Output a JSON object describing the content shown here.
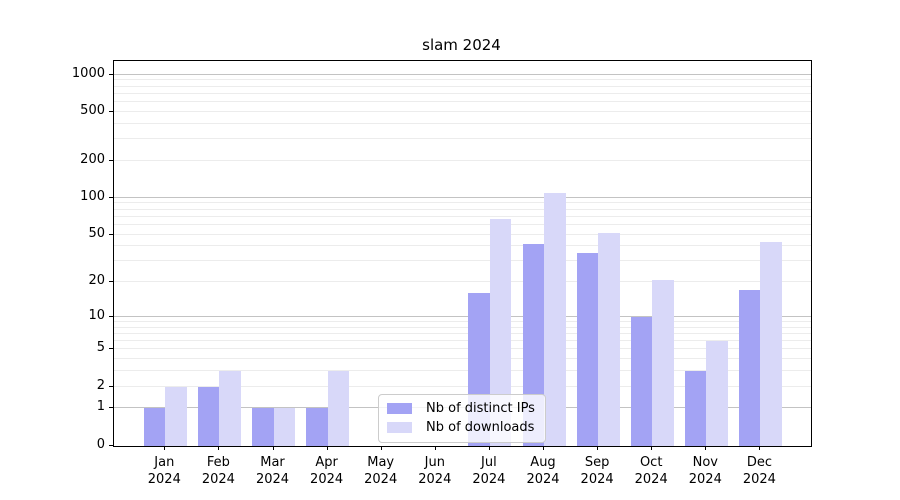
{
  "title": "slam 2024",
  "legend": {
    "items": [
      {
        "label": "Nb of distinct IPs",
        "color": "#a3a3f4"
      },
      {
        "label": "Nb of downloads",
        "color": "#d8d8f9"
      }
    ]
  },
  "axes": {
    "ytick_labels": [
      "0",
      "1",
      "2",
      "5",
      "10",
      "20",
      "50",
      "100",
      "200",
      "500",
      "1000"
    ],
    "year_label": "2024"
  },
  "chart_data": {
    "type": "bar",
    "title": "slam 2024",
    "categories": [
      "Jan 2024",
      "Feb 2024",
      "Mar 2024",
      "Apr 2024",
      "May 2024",
      "Jun 2024",
      "Jul 2024",
      "Aug 2024",
      "Sep 2024",
      "Oct 2024",
      "Nov 2024",
      "Dec 2024"
    ],
    "series": [
      {
        "name": "Nb of distinct IPs",
        "color": "#a3a3f4",
        "values": [
          1,
          2,
          1,
          1,
          0,
          0,
          16,
          42,
          35,
          10,
          3,
          17
        ]
      },
      {
        "name": "Nb of downloads",
        "color": "#d8d8f9",
        "values": [
          2,
          3,
          1,
          3,
          0,
          0,
          67,
          109,
          51,
          21,
          6,
          43
        ]
      }
    ],
    "xlabel": "",
    "ylabel": "",
    "yscale": "log1p",
    "ylim": [
      0,
      1290
    ],
    "yticks": [
      0,
      1,
      2,
      5,
      10,
      20,
      50,
      100,
      200,
      500,
      1000
    ],
    "ygrid_major": [
      1,
      10,
      100,
      1000
    ],
    "ygrid_minor": [
      2,
      3,
      4,
      5,
      6,
      7,
      8,
      9,
      20,
      30,
      40,
      50,
      60,
      70,
      80,
      90,
      200,
      300,
      400,
      500,
      600,
      700,
      800,
      900
    ],
    "grid": "horizontal",
    "legend_position": "lower center"
  }
}
